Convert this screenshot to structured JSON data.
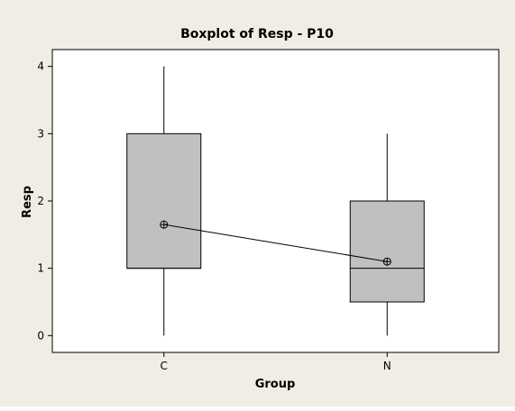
{
  "chart_data": {
    "type": "boxplot",
    "title": "Boxplot of Resp - P10",
    "xlabel": "Group",
    "ylabel": "Resp",
    "categories": [
      "C",
      "N"
    ],
    "ylim": [
      -0.25,
      4.25
    ],
    "yticks": [
      0,
      1,
      2,
      3,
      4
    ],
    "boxes": [
      {
        "category": "C",
        "whisker_low": 0,
        "q1": 1,
        "median": 1,
        "q3": 3,
        "whisker_high": 4,
        "mean": 1.65
      },
      {
        "category": "N",
        "whisker_low": 0,
        "q1": 0.5,
        "median": 1,
        "q3": 2,
        "whisker_high": 3,
        "mean": 1.1
      }
    ],
    "mean_connect_line": true,
    "colors": {
      "outer_background": "#f1ede4",
      "plot_background": "#ffffff",
      "box_fill": "#c0c0c0",
      "stroke": "#000000"
    }
  }
}
